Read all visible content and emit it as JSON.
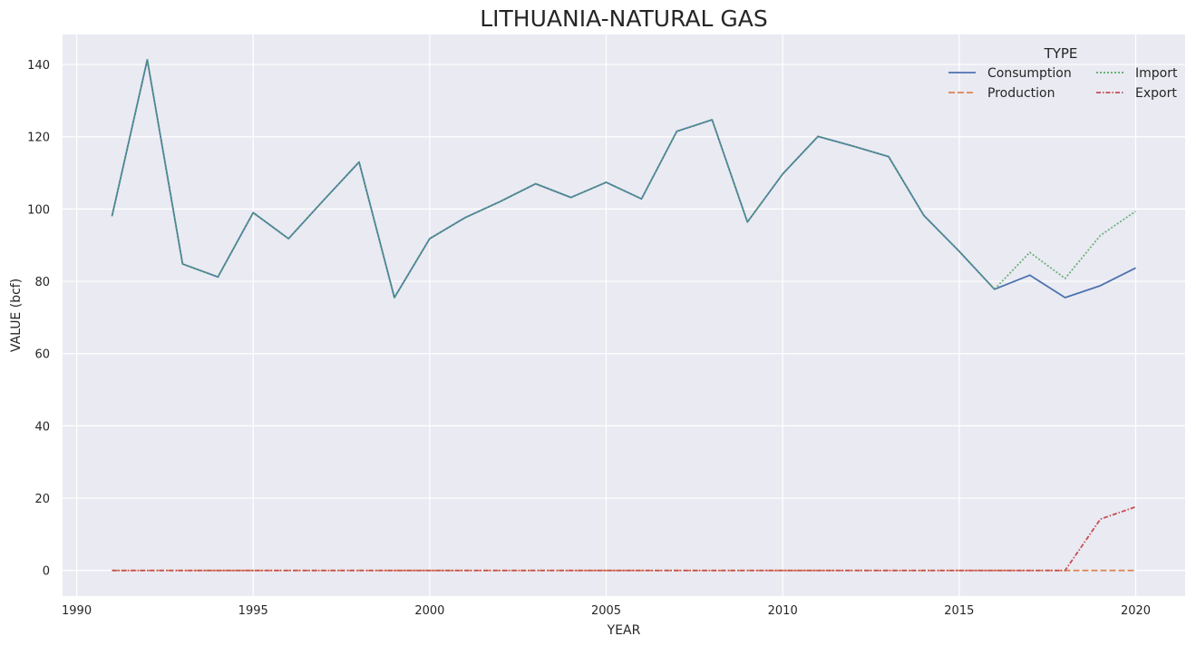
{
  "chart_data": {
    "type": "line",
    "title": "LITHUANIA-NATURAL GAS",
    "xlabel": "YEAR",
    "ylabel": "VALUE (bcf)",
    "xlim": [
      1989.6,
      2021.4
    ],
    "ylim": [
      -7.1,
      148.3
    ],
    "xticks": [
      1990,
      1995,
      2000,
      2005,
      2010,
      2015,
      2020
    ],
    "yticks": [
      0,
      20,
      40,
      60,
      80,
      100,
      120,
      140
    ],
    "grid": true,
    "legend": {
      "title": "TYPE",
      "placement": "top-right",
      "columns": 2
    },
    "x": [
      1991,
      1992,
      1993,
      1994,
      1995,
      1996,
      1997,
      1998,
      1999,
      2000,
      2001,
      2002,
      2003,
      2004,
      2005,
      2006,
      2007,
      2008,
      2009,
      2010,
      2011,
      2012,
      2013,
      2014,
      2015,
      2016,
      2017,
      2018,
      2019,
      2020
    ],
    "series": [
      {
        "name": "Consumption",
        "color": "#4c72b0",
        "dash": "solid",
        "values": [
          98,
          141.3,
          84.8,
          81.2,
          99,
          91.8,
          102.5,
          113,
          75.5,
          91.8,
          97.6,
          102.1,
          107,
          103.2,
          107.4,
          102.8,
          121.5,
          124.7,
          96.4,
          109.7,
          120.1,
          117.4,
          114.5,
          98.2,
          88.3,
          77.8,
          81.7,
          75.5,
          78.8,
          83.7
        ]
      },
      {
        "name": "Production",
        "color": "#dd8452",
        "dash": "7,3",
        "values": [
          0,
          0,
          0,
          0,
          0,
          0,
          0,
          0,
          0,
          0,
          0,
          0,
          0,
          0,
          0,
          0,
          0,
          0,
          0,
          0,
          0,
          0,
          0,
          0,
          0,
          0,
          0,
          0,
          0,
          0
        ]
      },
      {
        "name": "Import",
        "color": "#55a868",
        "dash": "2,2",
        "values": [
          98,
          141.3,
          84.8,
          81.2,
          99,
          91.8,
          102.5,
          113,
          75.5,
          91.8,
          97.6,
          102.1,
          107,
          103.2,
          107.4,
          102.8,
          121.5,
          124.7,
          96.4,
          109.7,
          120.1,
          117.4,
          114.5,
          98.2,
          88.3,
          77.8,
          88,
          80.8,
          92.7,
          99.4
        ]
      },
      {
        "name": "Export",
        "color": "#c44e52",
        "dash": "5,2,1.5,2",
        "values": [
          0,
          0,
          0,
          0,
          0,
          0,
          0,
          0,
          0,
          0,
          0,
          0,
          0,
          0,
          0,
          0,
          0,
          0,
          0,
          0,
          0,
          0,
          0,
          0,
          0,
          0,
          0,
          0,
          14.2,
          17.6
        ]
      }
    ]
  }
}
